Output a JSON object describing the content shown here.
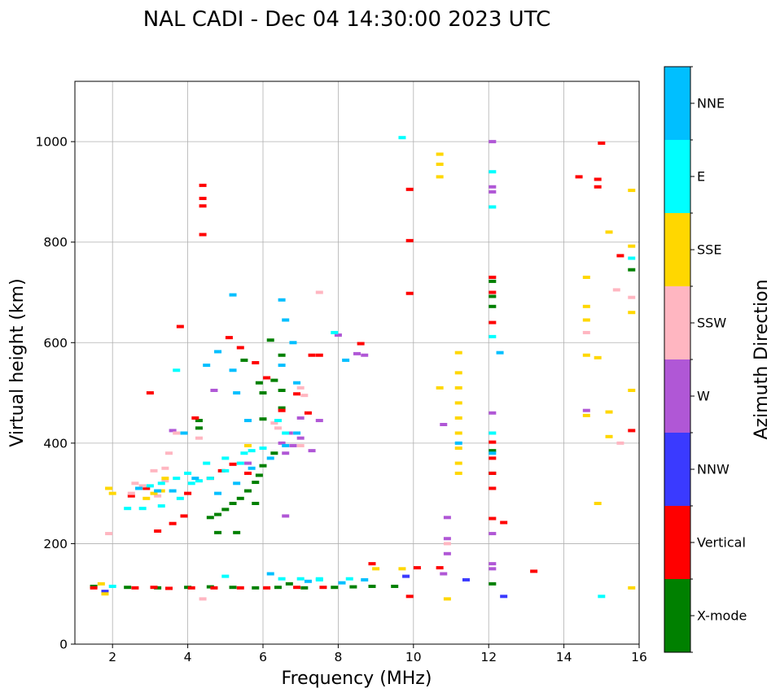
{
  "chart_data": {
    "type": "scatter",
    "title": "NAL CADI - Dec 04 14:30:00 2023 UTC",
    "xlabel": "Frequency (MHz)",
    "ylabel": "Virtual height (km)",
    "xlim": [
      1.0,
      16.0
    ],
    "ylim": [
      0,
      1120
    ],
    "xticks": [
      2,
      4,
      6,
      8,
      10,
      12,
      14,
      16
    ],
    "yticks": [
      0,
      200,
      400,
      600,
      800,
      1000
    ],
    "grid": true,
    "colorbar": {
      "label": "Azimuth Direction",
      "categories": [
        {
          "name": "X-mode",
          "color": "#008000"
        },
        {
          "name": "Vertical",
          "color": "#ff0000"
        },
        {
          "name": "NNW",
          "color": "#3a3aff"
        },
        {
          "name": "W",
          "color": "#b057d6"
        },
        {
          "name": "SSW",
          "color": "#ffb6c1"
        },
        {
          "name": "SSE",
          "color": "#ffd700"
        },
        {
          "name": "E",
          "color": "#00ffff"
        },
        {
          "name": "NNE",
          "color": "#00bfff"
        }
      ]
    },
    "series": [
      {
        "name": "X-mode",
        "points": [
          [
            1.5,
            115
          ],
          [
            2.4,
            113
          ],
          [
            3.2,
            112
          ],
          [
            4.0,
            113
          ],
          [
            4.6,
            114
          ],
          [
            5.2,
            113
          ],
          [
            5.8,
            112
          ],
          [
            6.4,
            113
          ],
          [
            7.1,
            112
          ],
          [
            7.9,
            113
          ],
          [
            8.4,
            114
          ],
          [
            8.9,
            115
          ],
          [
            4.6,
            252
          ],
          [
            4.8,
            258
          ],
          [
            5.0,
            268
          ],
          [
            5.2,
            280
          ],
          [
            5.4,
            290
          ],
          [
            5.6,
            305
          ],
          [
            5.8,
            322
          ],
          [
            5.9,
            336
          ],
          [
            6.0,
            355
          ],
          [
            5.5,
            565
          ],
          [
            5.9,
            520
          ],
          [
            4.3,
            430
          ],
          [
            4.3,
            445
          ],
          [
            6.0,
            448
          ],
          [
            6.0,
            500
          ],
          [
            6.5,
            505
          ],
          [
            6.5,
            470
          ],
          [
            6.2,
            605
          ],
          [
            6.3,
            525
          ],
          [
            5.3,
            222
          ],
          [
            4.8,
            222
          ],
          [
            6.5,
            575
          ],
          [
            12.1,
            120
          ],
          [
            12.1,
            340
          ],
          [
            12.1,
            385
          ],
          [
            12.1,
            672
          ],
          [
            12.1,
            692
          ],
          [
            12.1,
            722
          ],
          [
            15.8,
            745
          ],
          [
            9.5,
            115
          ],
          [
            6.7,
            120
          ],
          [
            5.8,
            280
          ],
          [
            6.3,
            380
          ]
        ]
      },
      {
        "name": "Vertical",
        "points": [
          [
            1.5,
            112
          ],
          [
            2.6,
            112
          ],
          [
            3.1,
            113
          ],
          [
            3.5,
            111
          ],
          [
            4.1,
            112
          ],
          [
            4.7,
            112
          ],
          [
            5.4,
            112
          ],
          [
            6.1,
            112
          ],
          [
            6.9,
            113
          ],
          [
            7.6,
            113
          ],
          [
            8.9,
            160
          ],
          [
            10.1,
            152
          ],
          [
            9.9,
            95
          ],
          [
            10.7,
            152
          ],
          [
            3.2,
            225
          ],
          [
            3.6,
            240
          ],
          [
            3.9,
            255
          ],
          [
            4.0,
            300
          ],
          [
            4.6,
            330
          ],
          [
            4.9,
            345
          ],
          [
            5.2,
            358
          ],
          [
            2.5,
            295
          ],
          [
            2.9,
            310
          ],
          [
            3.0,
            500
          ],
          [
            5.1,
            610
          ],
          [
            5.4,
            590
          ],
          [
            5.8,
            560
          ],
          [
            6.1,
            530
          ],
          [
            6.5,
            465
          ],
          [
            6.9,
            498
          ],
          [
            7.2,
            460
          ],
          [
            7.3,
            575
          ],
          [
            7.5,
            575
          ],
          [
            8.6,
            598
          ],
          [
            4.4,
            913
          ],
          [
            4.4,
            887
          ],
          [
            4.4,
            872
          ],
          [
            4.4,
            815
          ],
          [
            3.8,
            632
          ],
          [
            9.9,
            905
          ],
          [
            9.9,
            803
          ],
          [
            9.9,
            698
          ],
          [
            12.1,
            730
          ],
          [
            12.1,
            700
          ],
          [
            12.1,
            640
          ],
          [
            12.1,
            402
          ],
          [
            12.1,
            370
          ],
          [
            12.1,
            340
          ],
          [
            12.1,
            310
          ],
          [
            12.1,
            250
          ],
          [
            12.4,
            242
          ],
          [
            13.2,
            145
          ],
          [
            14.4,
            930
          ],
          [
            14.9,
            925
          ],
          [
            14.9,
            910
          ],
          [
            15.0,
            997
          ],
          [
            15.5,
            773
          ],
          [
            15.8,
            425
          ],
          [
            4.2,
            450
          ],
          [
            5.6,
            340
          ]
        ]
      },
      {
        "name": "NNW",
        "points": [
          [
            12.4,
            95
          ],
          [
            11.4,
            128
          ],
          [
            9.8,
            135
          ],
          [
            1.8,
            105
          ]
        ]
      },
      {
        "name": "W",
        "points": [
          [
            3.6,
            425
          ],
          [
            6.7,
            420
          ],
          [
            7.0,
            410
          ],
          [
            6.5,
            400
          ],
          [
            6.8,
            395
          ],
          [
            7.3,
            385
          ],
          [
            6.6,
            380
          ],
          [
            7.0,
            450
          ],
          [
            8.0,
            615
          ],
          [
            8.5,
            578
          ],
          [
            8.7,
            575
          ],
          [
            10.8,
            437
          ],
          [
            10.9,
            252
          ],
          [
            10.9,
            210
          ],
          [
            10.9,
            180
          ],
          [
            12.1,
            1000
          ],
          [
            12.1,
            910
          ],
          [
            12.1,
            900
          ],
          [
            12.1,
            460
          ],
          [
            12.1,
            220
          ],
          [
            12.1,
            160
          ],
          [
            12.1,
            150
          ],
          [
            14.6,
            465
          ],
          [
            6.6,
            255
          ],
          [
            7.5,
            445
          ],
          [
            4.7,
            505
          ],
          [
            5.6,
            360
          ],
          [
            10.8,
            140
          ]
        ]
      },
      {
        "name": "SSW",
        "points": [
          [
            1.9,
            220
          ],
          [
            2.5,
            300
          ],
          [
            2.6,
            320
          ],
          [
            2.8,
            315
          ],
          [
            3.1,
            345
          ],
          [
            3.4,
            350
          ],
          [
            3.5,
            380
          ],
          [
            3.7,
            420
          ],
          [
            4.3,
            410
          ],
          [
            7.0,
            510
          ],
          [
            7.1,
            495
          ],
          [
            6.3,
            440
          ],
          [
            7.0,
            395
          ],
          [
            6.4,
            430
          ],
          [
            7.5,
            700
          ],
          [
            10.9,
            200
          ],
          [
            15.5,
            400
          ],
          [
            15.8,
            690
          ],
          [
            15.4,
            705
          ],
          [
            14.6,
            620
          ],
          [
            4.4,
            90
          ],
          [
            3.4,
            325
          ],
          [
            3.2,
            295
          ]
        ]
      },
      {
        "name": "SSE",
        "points": [
          [
            1.7,
            120
          ],
          [
            1.8,
            100
          ],
          [
            1.9,
            310
          ],
          [
            2.0,
            300
          ],
          [
            2.9,
            290
          ],
          [
            3.1,
            300
          ],
          [
            3.3,
            305
          ],
          [
            9.0,
            150
          ],
          [
            9.7,
            150
          ],
          [
            10.9,
            90
          ],
          [
            10.7,
            930
          ],
          [
            10.7,
            955
          ],
          [
            10.7,
            975
          ],
          [
            10.7,
            510
          ],
          [
            11.2,
            340
          ],
          [
            11.2,
            360
          ],
          [
            11.2,
            390
          ],
          [
            11.2,
            420
          ],
          [
            11.2,
            450
          ],
          [
            11.2,
            480
          ],
          [
            11.2,
            510
          ],
          [
            11.2,
            540
          ],
          [
            11.2,
            580
          ],
          [
            14.6,
            730
          ],
          [
            14.6,
            672
          ],
          [
            14.6,
            645
          ],
          [
            14.6,
            575
          ],
          [
            14.6,
            455
          ],
          [
            14.9,
            570
          ],
          [
            14.9,
            280
          ],
          [
            15.2,
            820
          ],
          [
            15.2,
            462
          ],
          [
            15.2,
            413
          ],
          [
            15.8,
            903
          ],
          [
            15.8,
            792
          ],
          [
            15.8,
            660
          ],
          [
            15.8,
            505
          ],
          [
            15.8,
            112
          ],
          [
            3.4,
            330
          ],
          [
            5.6,
            395
          ]
        ]
      },
      {
        "name": "E",
        "points": [
          [
            2.0,
            115
          ],
          [
            2.4,
            270
          ],
          [
            2.8,
            270
          ],
          [
            3.3,
            275
          ],
          [
            3.8,
            290
          ],
          [
            4.1,
            320
          ],
          [
            4.3,
            325
          ],
          [
            4.6,
            330
          ],
          [
            5.0,
            345
          ],
          [
            5.4,
            360
          ],
          [
            5.7,
            385
          ],
          [
            6.0,
            390
          ],
          [
            3.0,
            315
          ],
          [
            3.3,
            320
          ],
          [
            3.7,
            330
          ],
          [
            4.0,
            340
          ],
          [
            4.5,
            360
          ],
          [
            5.0,
            370
          ],
          [
            5.5,
            380
          ],
          [
            6.5,
            130
          ],
          [
            7.0,
            130
          ],
          [
            7.5,
            128
          ],
          [
            8.3,
            130
          ],
          [
            6.6,
            420
          ],
          [
            6.4,
            445
          ],
          [
            12.1,
            940
          ],
          [
            12.1,
            870
          ],
          [
            12.1,
            612
          ],
          [
            12.1,
            420
          ],
          [
            9.7,
            1008
          ],
          [
            15.0,
            95
          ],
          [
            15.8,
            768
          ],
          [
            7.9,
            620
          ],
          [
            3.7,
            545
          ],
          [
            7.5,
            130
          ],
          [
            5.0,
            135
          ]
        ]
      },
      {
        "name": "NNE",
        "points": [
          [
            2.7,
            310
          ],
          [
            3.2,
            305
          ],
          [
            3.6,
            305
          ],
          [
            4.2,
            330
          ],
          [
            4.8,
            300
          ],
          [
            5.3,
            320
          ],
          [
            5.7,
            350
          ],
          [
            6.2,
            370
          ],
          [
            6.6,
            395
          ],
          [
            6.9,
            420
          ],
          [
            5.2,
            695
          ],
          [
            6.5,
            685
          ],
          [
            6.6,
            645
          ],
          [
            6.8,
            600
          ],
          [
            6.5,
            555
          ],
          [
            6.9,
            520
          ],
          [
            4.5,
            555
          ],
          [
            4.8,
            582
          ],
          [
            5.2,
            545
          ],
          [
            5.3,
            500
          ],
          [
            5.6,
            445
          ],
          [
            8.2,
            565
          ],
          [
            6.2,
            140
          ],
          [
            7.2,
            125
          ],
          [
            8.1,
            122
          ],
          [
            8.7,
            128
          ],
          [
            12.3,
            580
          ],
          [
            12.1,
            380
          ],
          [
            11.2,
            400
          ],
          [
            3.9,
            420
          ]
        ]
      }
    ]
  }
}
